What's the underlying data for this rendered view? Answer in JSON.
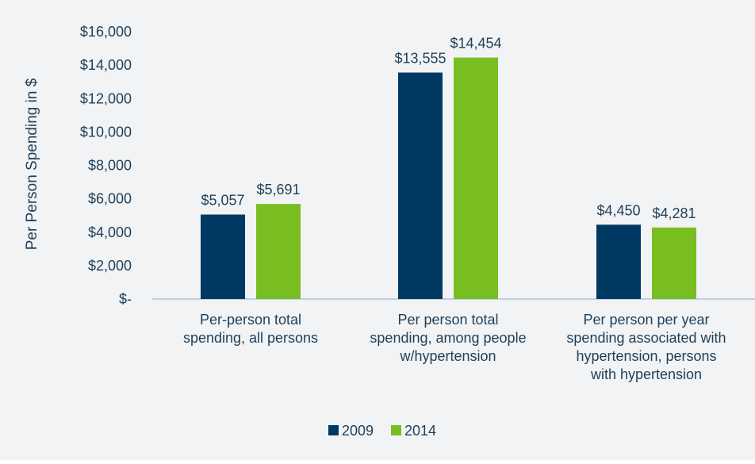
{
  "chart_data": {
    "type": "bar",
    "title": "",
    "xlabel": "",
    "ylabel": "Per Person Spending in $",
    "ylim": [
      0,
      16000
    ],
    "grid": false,
    "legend_position": "bottom",
    "y_ticks": [
      {
        "value": 16000,
        "label": "$16,000"
      },
      {
        "value": 14000,
        "label": "$14,000"
      },
      {
        "value": 12000,
        "label": "$12,000"
      },
      {
        "value": 10000,
        "label": "$10,000"
      },
      {
        "value": 8000,
        "label": "$8,000"
      },
      {
        "value": 6000,
        "label": "$6,000"
      },
      {
        "value": 4000,
        "label": "$4,000"
      },
      {
        "value": 2000,
        "label": "$2,000"
      },
      {
        "value": 0,
        "label": "$-"
      }
    ],
    "categories": [
      [
        "Per-person total",
        "spending, all persons"
      ],
      [
        "Per person total",
        "spending, among people",
        "w/hypertension"
      ],
      [
        "Per person per year",
        "spending associated with",
        "hypertension, persons",
        "with hypertension"
      ]
    ],
    "series": [
      {
        "name": "2009",
        "color": "#003a63",
        "values": [
          5057,
          13555,
          4450
        ],
        "labels": [
          "$5,057",
          "$13,555",
          "$4,450"
        ]
      },
      {
        "name": "2014",
        "color": "#78be21",
        "values": [
          5691,
          14454,
          4281
        ],
        "labels": [
          "$5,691",
          "$14,454",
          "$4,281"
        ]
      }
    ],
    "colors": {
      "background": "#f2f3f4",
      "text": "#1e3f5a",
      "axis": "#a9c6e0"
    }
  }
}
